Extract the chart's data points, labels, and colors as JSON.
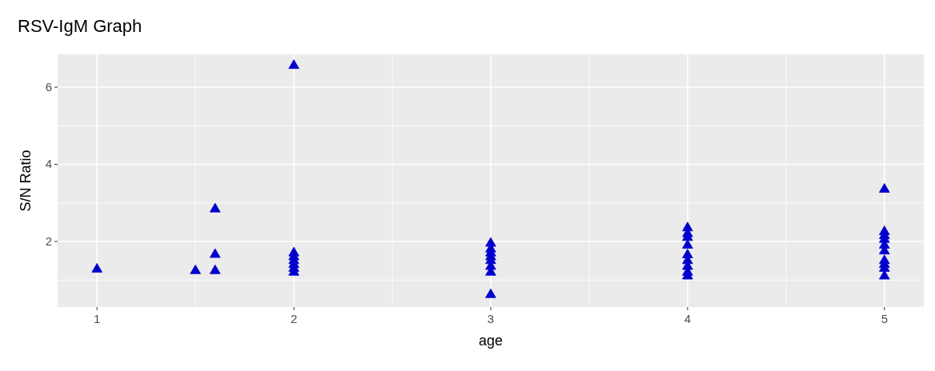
{
  "chart_data": {
    "type": "scatter",
    "title": "RSV-IgM Graph",
    "xlabel": "age",
    "ylabel": "S/N Ratio",
    "x": [
      1,
      1.5,
      1.6,
      1.6,
      1.6,
      2,
      2,
      2,
      2,
      2,
      2,
      2,
      3,
      3,
      3,
      3,
      3,
      3,
      3,
      3,
      4,
      4,
      4,
      4,
      4,
      4,
      4,
      4,
      4,
      5,
      5,
      5,
      5,
      5,
      5,
      5,
      5,
      5,
      5
    ],
    "series": [
      {
        "color": "#0000cd",
        "values": [
          1.28,
          1.24,
          2.84,
          1.66,
          1.24,
          6.56,
          1.2,
          1.3,
          1.4,
          1.5,
          1.6,
          1.7,
          0.62,
          1.2,
          1.35,
          1.5,
          1.6,
          1.7,
          1.8,
          1.95,
          1.1,
          1.2,
          1.35,
          1.5,
          1.65,
          1.9,
          2.1,
          2.2,
          2.35,
          3.35,
          1.1,
          1.3,
          1.4,
          1.5,
          1.75,
          1.9,
          2.05,
          2.15,
          2.25
        ]
      }
    ],
    "xlim": [
      0.8,
      5.2
    ],
    "xticks": [
      1,
      2,
      3,
      4,
      5
    ],
    "ylim": [
      0.3,
      6.85
    ],
    "yticks": [
      2,
      4,
      6
    ],
    "grid": true,
    "marker": "triangle"
  }
}
